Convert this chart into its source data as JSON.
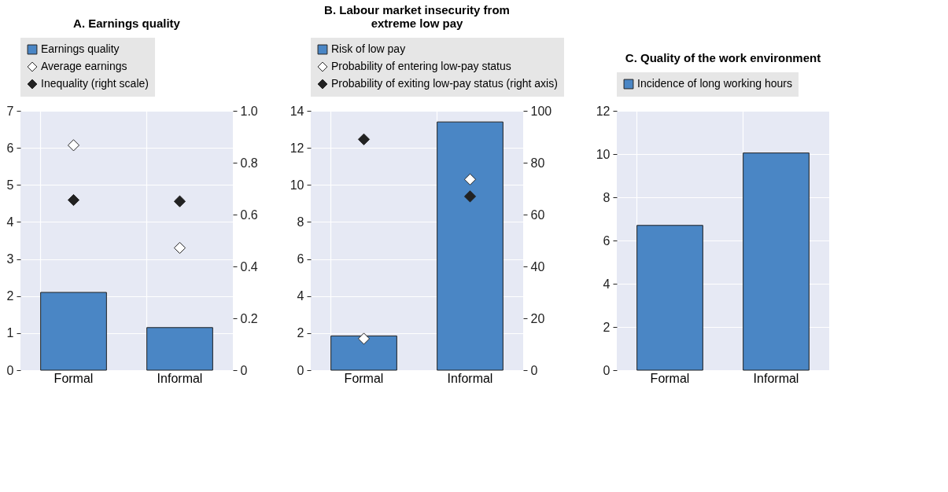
{
  "chart_data": [
    {
      "type": "bar",
      "title": "A. Earnings quality",
      "categories": [
        "Formal",
        "Informal"
      ],
      "marker": "diamond",
      "legend": "top",
      "grid": true,
      "series": [
        {
          "name": "Earnings quality",
          "type": "bar",
          "color": "#4a86c5",
          "values": [
            2.1,
            1.15
          ]
        },
        {
          "name": "Average earnings",
          "type": "scatter",
          "color": "#ffffff",
          "values": [
            6.07,
            3.3
          ]
        },
        {
          "name": "Inequality (right scale)",
          "type": "scatter",
          "color": "#222222",
          "axis": "y2",
          "values": [
            0.656,
            0.651
          ]
        }
      ],
      "ylim": [
        0,
        7
      ],
      "yticks": [
        0,
        1,
        2,
        3,
        4,
        5,
        6,
        7
      ],
      "y2lim": [
        0,
        1
      ],
      "y2ticks": [
        0,
        0.2,
        0.4,
        0.6,
        0.8,
        {
          "value": 1,
          "label": "1.0"
        }
      ]
    },
    {
      "type": "bar",
      "title": "B. Labour market insecurity from extreme low pay",
      "categories": [
        "Formal",
        "Informal"
      ],
      "marker": "diamond",
      "legend": "top",
      "grid": true,
      "series": [
        {
          "name": "Risk of low pay",
          "type": "bar",
          "color": "#4a86c5",
          "values": [
            1.85,
            13.4
          ]
        },
        {
          "name": "Probability of entering low-pay status",
          "type": "scatter",
          "color": "#ffffff",
          "values": [
            1.7,
            10.3
          ]
        },
        {
          "name": "Probability of exiting low-pay status (right axis)",
          "type": "scatter",
          "color": "#222222",
          "axis": "y2",
          "values": [
            89,
            67
          ]
        }
      ],
      "ylim": [
        0,
        14
      ],
      "yticks": [
        0,
        2,
        4,
        6,
        8,
        10,
        12,
        14
      ],
      "y2lim": [
        0,
        100
      ],
      "y2ticks": [
        0,
        20,
        40,
        60,
        80,
        100
      ]
    },
    {
      "type": "bar",
      "title": "C. Quality of the work environment",
      "categories": [
        "Formal",
        "Informal"
      ],
      "legend": "top",
      "grid": true,
      "series": [
        {
          "name": "Incidence of long working hours",
          "type": "bar",
          "color": "#4a86c5",
          "values": [
            6.7,
            10.05
          ]
        }
      ],
      "ylim": [
        0,
        12
      ],
      "yticks": [
        0,
        2,
        4,
        6,
        8,
        10,
        12
      ]
    }
  ]
}
